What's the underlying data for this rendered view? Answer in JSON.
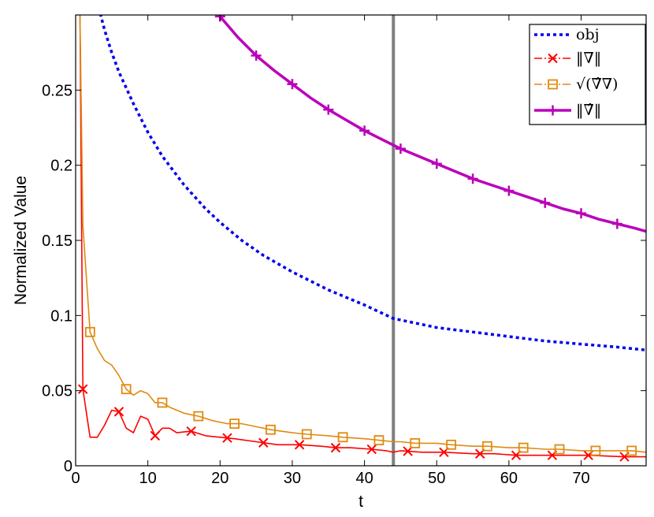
{
  "chart_data": {
    "type": "line",
    "title": "",
    "xlabel": "t",
    "ylabel": "Normalized Value",
    "xlim": [
      0,
      79
    ],
    "ylim": [
      0,
      0.3
    ],
    "xticks": [
      0,
      10,
      20,
      30,
      40,
      50,
      60,
      70
    ],
    "xtick_labels": [
      "0",
      "10",
      "20",
      "30",
      "40",
      "50",
      "60",
      "70"
    ],
    "yticks": [
      0,
      0.05,
      0.1,
      0.15,
      0.2,
      0.25
    ],
    "ytick_labels": [
      "0",
      "0.05",
      "0.1",
      "0.15",
      "0.2",
      "0.25"
    ],
    "grid": false,
    "legend_position": "top-right",
    "vline_x": 44,
    "vline_color": "#808080",
    "series": [
      {
        "name": "obj",
        "legend_label": "obj",
        "color": "#0000ee",
        "linestyle": "dotted",
        "marker": "none",
        "x": [
          3.2,
          4,
          5,
          6,
          8,
          10,
          12,
          15,
          18,
          20,
          23,
          26,
          30,
          35,
          40,
          44,
          50,
          55,
          60,
          65,
          70,
          75,
          79
        ],
        "y": [
          0.305,
          0.29,
          0.275,
          0.262,
          0.241,
          0.222,
          0.206,
          0.187,
          0.171,
          0.162,
          0.15,
          0.14,
          0.129,
          0.117,
          0.107,
          0.098,
          0.092,
          0.089,
          0.086,
          0.083,
          0.081,
          0.079,
          0.077
        ]
      },
      {
        "name": "grad-norm",
        "legend_label": "‖∇‖",
        "color": "#ff0000",
        "linestyle": "solid",
        "marker": "x",
        "x": [
          0.6,
          1,
          2,
          3,
          4,
          5,
          6,
          7,
          8,
          9,
          10,
          11,
          12,
          13,
          14,
          16,
          18,
          20,
          22,
          25,
          28,
          31,
          34,
          36,
          38,
          41,
          43,
          44,
          45,
          48,
          51,
          55,
          58,
          61,
          64,
          67,
          71,
          76,
          79
        ],
        "y": [
          0.3,
          0.051,
          0.019,
          0.019,
          0.027,
          0.037,
          0.036,
          0.025,
          0.022,
          0.033,
          0.031,
          0.02,
          0.025,
          0.025,
          0.022,
          0.023,
          0.02,
          0.019,
          0.018,
          0.016,
          0.014,
          0.014,
          0.013,
          0.012,
          0.012,
          0.011,
          0.01,
          0.009,
          0.01,
          0.009,
          0.009,
          0.008,
          0.008,
          0.007,
          0.007,
          0.007,
          0.007,
          0.006,
          0.006
        ]
      },
      {
        "name": "sqrt-hat-grad-grad",
        "legend_label": "√(∇̂∇)",
        "color": "#e08a10",
        "linestyle": "solid",
        "marker": "square",
        "x": [
          0.6,
          1,
          2,
          3,
          4,
          5,
          6,
          7,
          8,
          9,
          10,
          11,
          12,
          13,
          15,
          17,
          19,
          21,
          23,
          25,
          27,
          30,
          32,
          35,
          37,
          40,
          42,
          44,
          45,
          47,
          50,
          52,
          55,
          57,
          60,
          62,
          65,
          67,
          70,
          72,
          75,
          77,
          79
        ],
        "y": [
          0.3,
          0.16,
          0.089,
          0.078,
          0.07,
          0.067,
          0.06,
          0.051,
          0.047,
          0.05,
          0.048,
          0.042,
          0.042,
          0.039,
          0.035,
          0.033,
          0.03,
          0.028,
          0.028,
          0.026,
          0.024,
          0.022,
          0.021,
          0.02,
          0.019,
          0.018,
          0.017,
          0.016,
          0.016,
          0.015,
          0.015,
          0.014,
          0.013,
          0.013,
          0.012,
          0.012,
          0.011,
          0.011,
          0.01,
          0.01,
          0.01,
          0.01,
          0.009
        ]
      },
      {
        "name": "hat-grad-norm",
        "legend_label": "‖∇̂‖",
        "color": "#bb00bb",
        "linestyle": "solid",
        "marker": "plus",
        "x": [
          20,
          22.5,
          25,
          27.5,
          30,
          32.5,
          35,
          37.5,
          40,
          42.5,
          45,
          47.5,
          50,
          52.5,
          55,
          57.5,
          60,
          62.5,
          65,
          67.5,
          70,
          72.5,
          75,
          77.5,
          79
        ],
        "y": [
          0.299,
          0.285,
          0.273,
          0.263,
          0.254,
          0.245,
          0.237,
          0.23,
          0.223,
          0.217,
          0.211,
          0.206,
          0.201,
          0.196,
          0.191,
          0.187,
          0.183,
          0.179,
          0.175,
          0.171,
          0.168,
          0.164,
          0.161,
          0.158,
          0.156
        ]
      }
    ]
  }
}
